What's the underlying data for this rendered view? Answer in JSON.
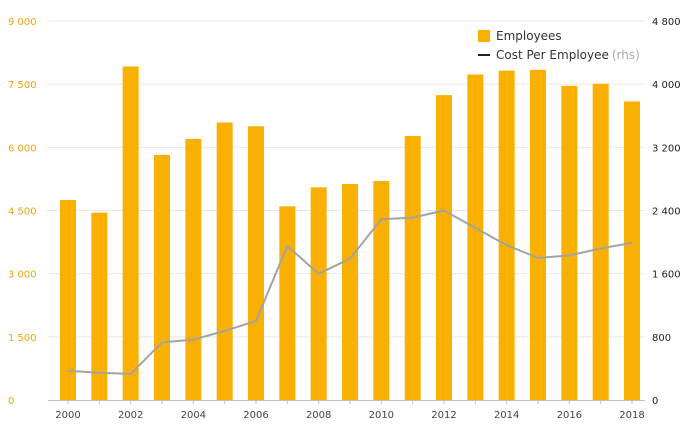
{
  "chart_data": {
    "type": "bar",
    "categories": [
      "2000",
      "2001",
      "2002",
      "2003",
      "2004",
      "2005",
      "2006",
      "2007",
      "2008",
      "2009",
      "2010",
      "2011",
      "2012",
      "2013",
      "2014",
      "2015",
      "2016",
      "2017",
      "2018"
    ],
    "x_tick_labels": [
      "2000",
      "2002",
      "2004",
      "2006",
      "2008",
      "2010",
      "2012",
      "2014",
      "2016",
      "2018"
    ],
    "series": [
      {
        "name": "Employees",
        "type": "bar",
        "axis": "left",
        "color": "#f9b000",
        "values": [
          4750,
          4450,
          7920,
          5820,
          6200,
          6590,
          6500,
          4600,
          5050,
          5130,
          5200,
          6270,
          7240,
          7730,
          7820,
          7840,
          7460,
          7510,
          7090
        ]
      },
      {
        "name": "Cost Per Employee",
        "name_note": "(rhs)",
        "type": "line",
        "axis": "right",
        "color": "#a3a3a3",
        "values": [
          370,
          345,
          330,
          730,
          765,
          875,
          1000,
          1950,
          1600,
          1790,
          2290,
          2310,
          2400,
          2180,
          1960,
          1800,
          1830,
          1920,
          1990
        ]
      }
    ],
    "y_left": {
      "lim": [
        0,
        9000
      ],
      "ticks": [
        0,
        1500,
        3000,
        4500,
        6000,
        7500,
        9000
      ],
      "tick_labels": [
        "0",
        "1 500",
        "3 000",
        "4 500",
        "6 000",
        "7 500",
        "9 000"
      ]
    },
    "y_right": {
      "lim": [
        0,
        4800
      ],
      "ticks": [
        0,
        800,
        1600,
        2400,
        3200,
        4000,
        4800
      ],
      "tick_labels": [
        "0",
        "800",
        "1 600",
        "2 400",
        "3 200",
        "4 000",
        "4 800"
      ]
    },
    "grid": true,
    "legend_position": "top-right",
    "title": "",
    "xlabel": "",
    "ylabel": ""
  }
}
